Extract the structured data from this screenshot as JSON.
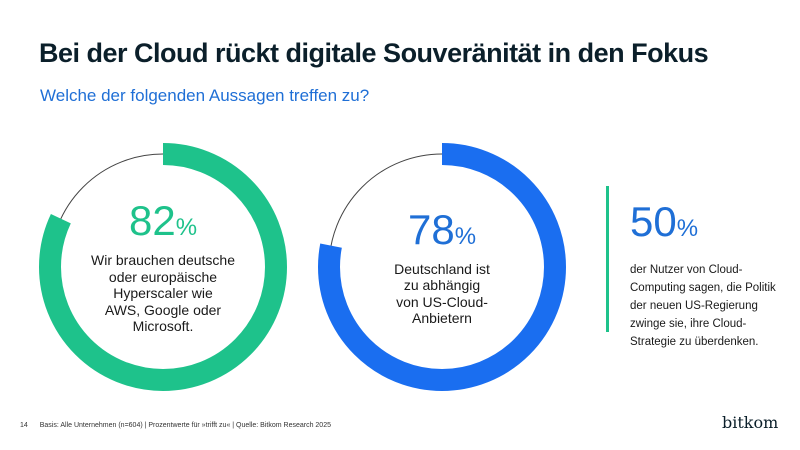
{
  "header": {
    "title": "Bei der Cloud rückt digitale Souveränität in den Fokus",
    "subtitle": "Welche der folgenden Aussagen treffen zu?"
  },
  "chart_data": [
    {
      "type": "pie",
      "style": "donut",
      "value": 82,
      "unit": "%",
      "label": "Wir brauchen deutsche oder europäische Hyperscaler wie AWS, Google oder Microsoft.",
      "label_lines": [
        "Wir brauchen deutsche",
        "oder europäische",
        "Hyperscaler wie",
        "AWS, Google oder",
        "Microsoft."
      ],
      "color": "#1ec28b"
    },
    {
      "type": "pie",
      "style": "donut",
      "value": 78,
      "unit": "%",
      "label": "Deutschland ist zu abhängig von US-Cloud-Anbietern",
      "label_lines": [
        "Deutschland ist",
        "zu abhängig",
        "von US-Cloud-",
        "Anbietern"
      ],
      "color": "#1a6ef0"
    }
  ],
  "stat": {
    "value": "50",
    "unit": "%",
    "label_lines": [
      "der Nutzer von Cloud-",
      "Computing sagen, die Politik",
      "der neuen US-Regierung",
      "zwinge sie, ihre Cloud-",
      "Strategie zu überdenken."
    ],
    "color": "#1f6fd6",
    "accent": "#1ec28b"
  },
  "footer": {
    "page": "14",
    "note": "Basis: Alle Unternehmen (n=604) | Prozentwerte für »trifft zu« | Quelle: Bitkom Research 2025"
  },
  "logo": "bitkom"
}
